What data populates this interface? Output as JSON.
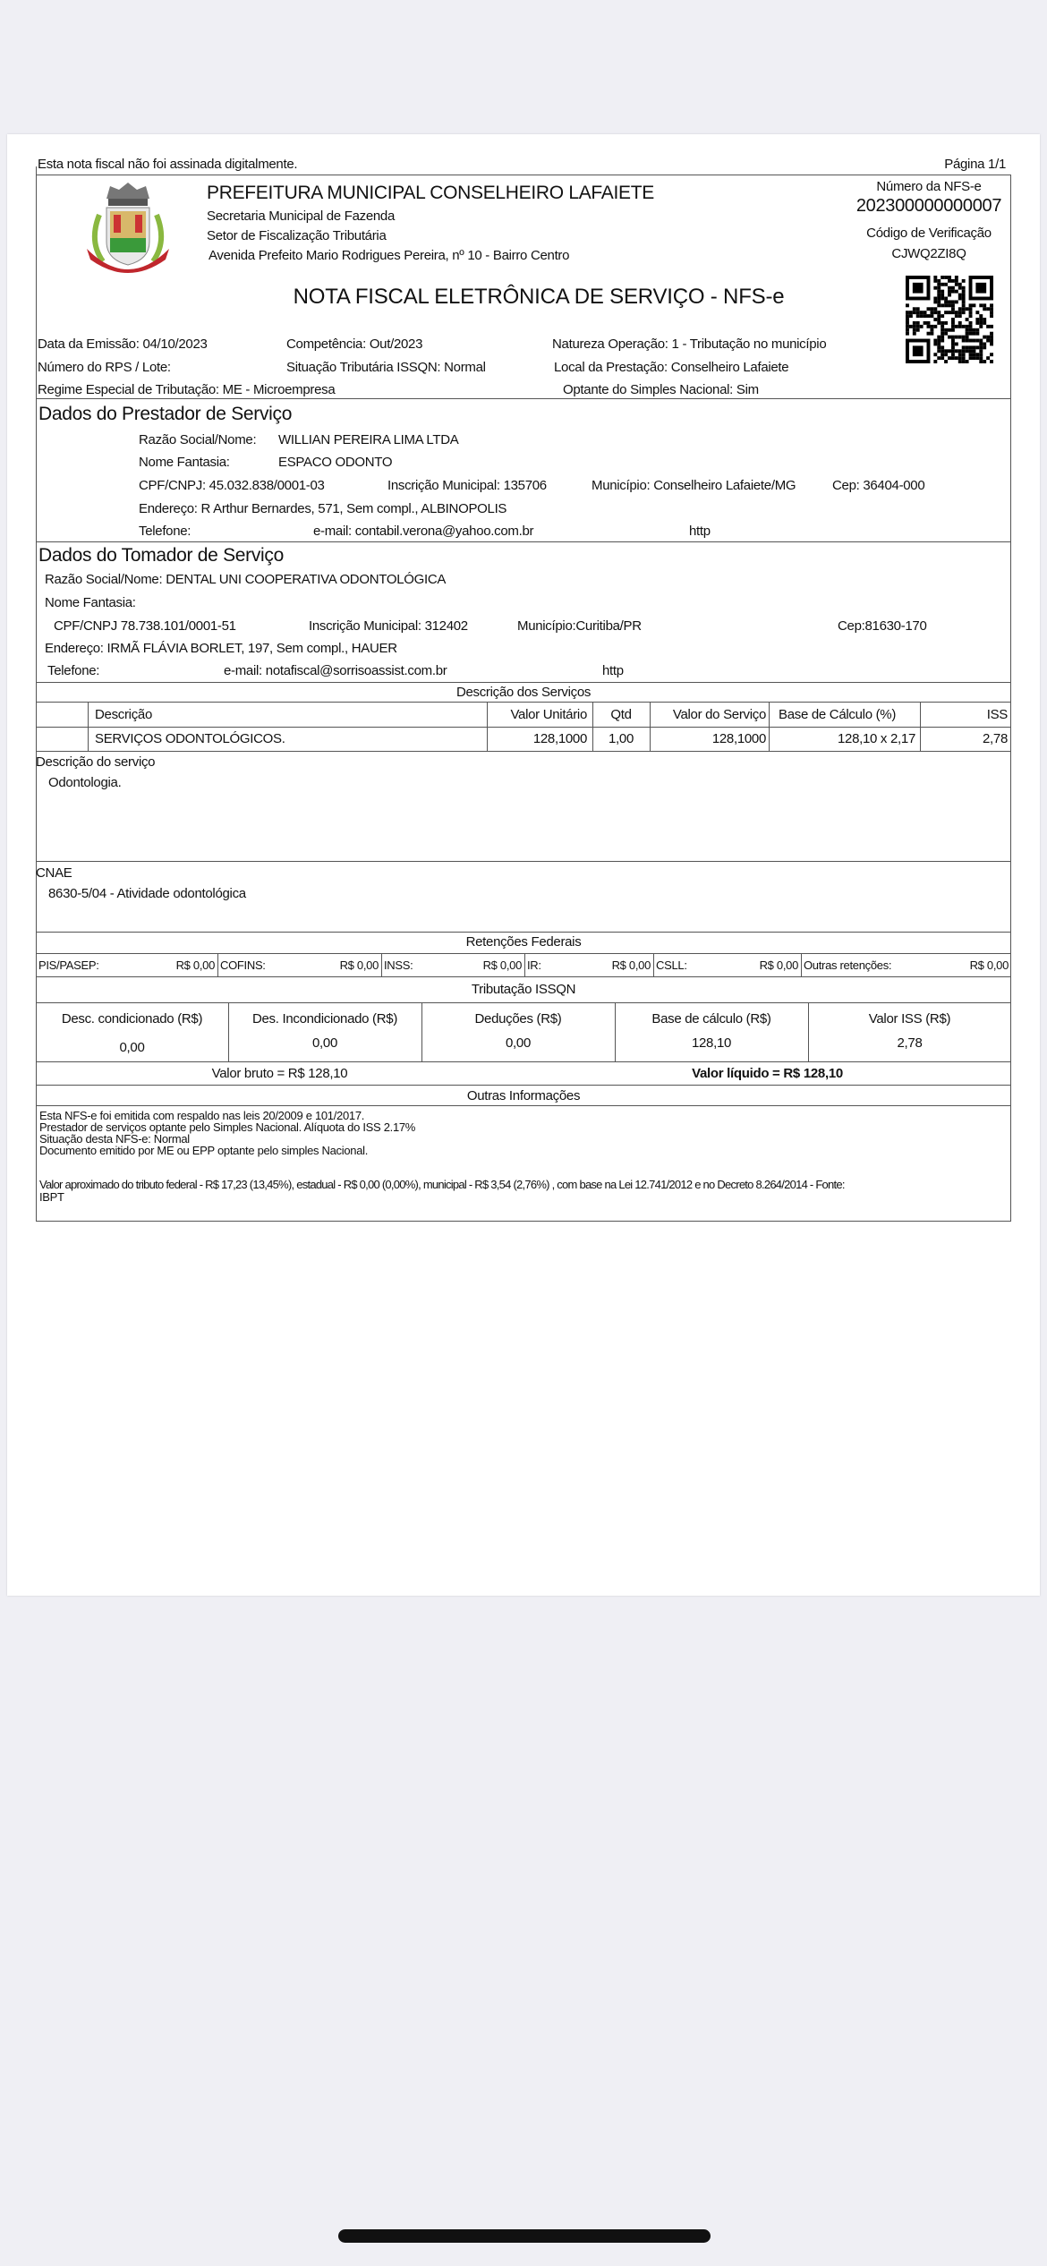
{
  "notice": "Esta nota fiscal não foi assinada digitalmente.",
  "page_label": "Página 1/1",
  "header": {
    "org": "PREFEITURA MUNICIPAL CONSELHEIRO LAFAIETE",
    "dept": "Secretaria Municipal de Fazenda",
    "sector": "Setor de Fiscalização Tributária",
    "address": "Avenida Prefeito Mario Rodrigues Pereira, nº 10 - Bairro Centro",
    "nfse_label": "Número da NFS-e",
    "nfse_number": "202300000000007",
    "verif_label": "Código de Verificação",
    "verif_code": "CJWQ2ZI8Q",
    "doc_title": "NOTA FISCAL ELETRÔNICA DE SERVIÇO - NFS-e"
  },
  "info": {
    "emissao": "Data da Emissão:  04/10/2023",
    "competencia": "Competência: Out/2023",
    "natureza": "Natureza Operação: 1 - Tributação no município",
    "rps": "Número do RPS / Lote:",
    "situacao": "Situação Tributária ISSQN: Normal",
    "local": "Local da Prestação: Conselheiro Lafaiete",
    "regime": "Regime Especial de Tributação:  ME - Microempresa",
    "optante": "Optante do Simples Nacional:   Sim"
  },
  "prestador": {
    "title": "Dados do Prestador de Serviço",
    "razao_label": "Razão Social/Nome:",
    "razao": "WILLIAN PEREIRA LIMA LTDA",
    "fantasia_label": "Nome Fantasia:",
    "fantasia": "ESPACO ODONTO",
    "cnpj": "CPF/CNPJ:   45.032.838/0001-03",
    "inscricao": "Inscrição Municipal:  135706",
    "municipio": "Município:  Conselheiro Lafaiete/MG",
    "cep": "Cep:  36404-000",
    "endereco": "Endereço: R Arthur Bernardes, 571, Sem compl., ALBINOPOLIS",
    "telefone": "Telefone:",
    "email": "e-mail: contabil.verona@yahoo.com.br",
    "http": "http"
  },
  "tomador": {
    "title": "Dados do Tomador de Serviço",
    "razao": "Razão Social/Nome:   DENTAL UNI COOPERATIVA ODONTOLÓGICA",
    "fantasia": "Nome Fantasia:",
    "cnpj": "CPF/CNPJ  78.738.101/0001-51",
    "inscricao": "Inscrição Municipal:  312402",
    "municipio": "Município:Curitiba/PR",
    "cep": "Cep:81630-170",
    "endereco": "Endereço: IRMÃ FLÁVIA BORLET, 197, Sem compl., HAUER",
    "telefone": "Telefone:",
    "email": "e-mail: notafiscal@sorrisoassist.com.br",
    "http": "http"
  },
  "servicos": {
    "title": "Descrição dos Serviços",
    "headers": [
      "Descrição",
      "Valor Unitário",
      "Qtd",
      "Valor do Serviço",
      "Base de Cálculo   (%)",
      "ISS"
    ],
    "row": [
      "SERVIÇOS ODONTOLÓGICOS.",
      "128,1000",
      "1,00",
      "128,1000",
      "128,10 x 2,17",
      "2,78"
    ]
  },
  "descricao": {
    "label": "Descrição do serviço",
    "text": "Odontologia."
  },
  "cnae": {
    "label": "CNAE",
    "text": "8630-5/04 - Atividade odontológica"
  },
  "retencoes": {
    "title": "Retenções Federais",
    "items": [
      {
        "label": "PIS/PASEP:",
        "value": "R$ 0,00"
      },
      {
        "label": "COFINS:",
        "value": "R$ 0,00"
      },
      {
        "label": "INSS:",
        "value": "R$ 0,00"
      },
      {
        "label": "IR:",
        "value": "R$ 0,00"
      },
      {
        "label": "CSLL:",
        "value": "R$ 0,00"
      },
      {
        "label": "Outras retenções:",
        "value": "R$ 0,00"
      }
    ]
  },
  "issqn": {
    "title": "Tributação ISSQN",
    "items": [
      {
        "label": "Desc. condicionado (R$)",
        "value": "0,00"
      },
      {
        "label": "Des. Incondicionado (R$)",
        "value": "0,00"
      },
      {
        "label": "Deduções (R$)",
        "value": "0,00"
      },
      {
        "label": "Base de cálculo (R$)",
        "value": "128,10"
      },
      {
        "label": "Valor ISS (R$)",
        "value": "2,78"
      }
    ]
  },
  "totais": {
    "bruto": "Valor bruto = R$ 128,10",
    "liquido": "Valor líquido = R$ 128,10"
  },
  "outras": {
    "title": "Outras Informações",
    "lines": [
      "Esta NFS-e foi emitida com respaldo nas leis 20/2009 e 101/2017.",
      "Prestador de serviços optante pelo Simples Nacional. Alíquota do ISS 2.17%",
      "Situação desta NFS-e: Normal",
      "Documento emitido por ME ou EPP optante pelo simples Nacional.",
      "Valor aproximado do tributo federal - R$ 17,23 (13,45%), estadual - R$ 0,00 (0,00%), municipal - R$ 3,54 (2,76%) , com base na Lei 12.741/2012 e no Decreto 8.264/2014 - Fonte:",
      "IBPT"
    ]
  }
}
